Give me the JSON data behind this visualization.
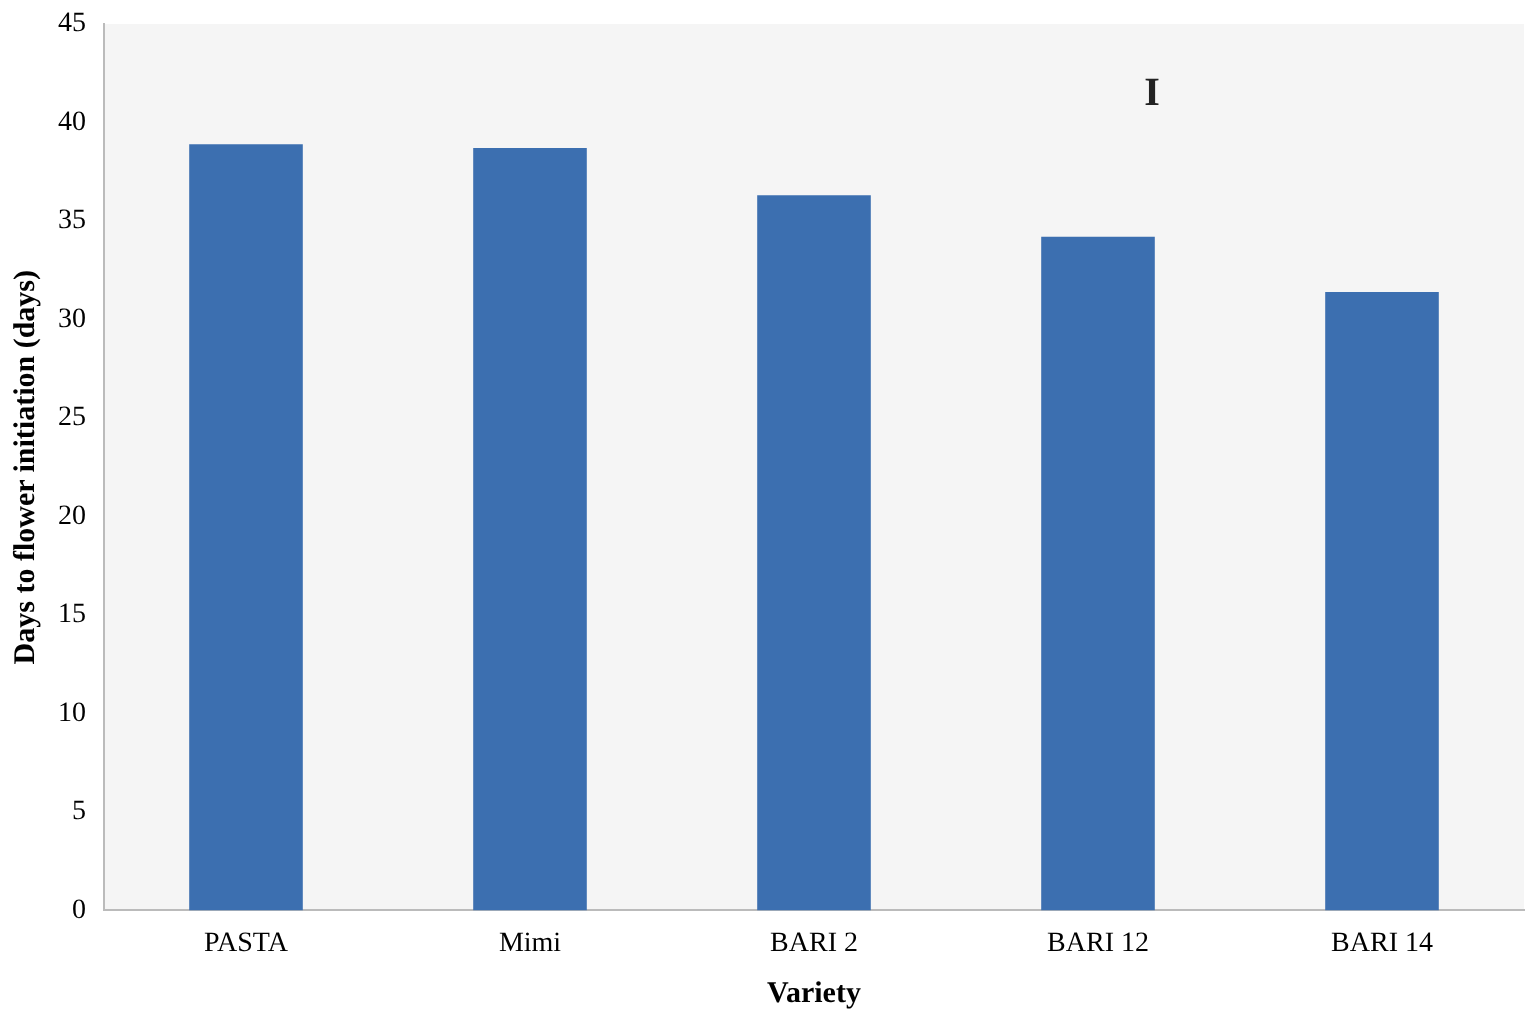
{
  "chart_data": {
    "type": "bar",
    "xlabel": "Variety",
    "ylabel": "Days to flower initiation (days)",
    "categories": [
      "PASTA",
      "Mimi",
      "BARI 2",
      "BARI 12",
      "BARI 14"
    ],
    "values": [
      38.9,
      38.7,
      36.3,
      34.2,
      31.4
    ],
    "color": "#3c6fb0",
    "ylim": [
      0,
      45
    ],
    "yticks": [
      0,
      5,
      10,
      15,
      20,
      25,
      30,
      35,
      40,
      45
    ],
    "grid": false,
    "legend": false,
    "annotations": [
      "I"
    ]
  }
}
